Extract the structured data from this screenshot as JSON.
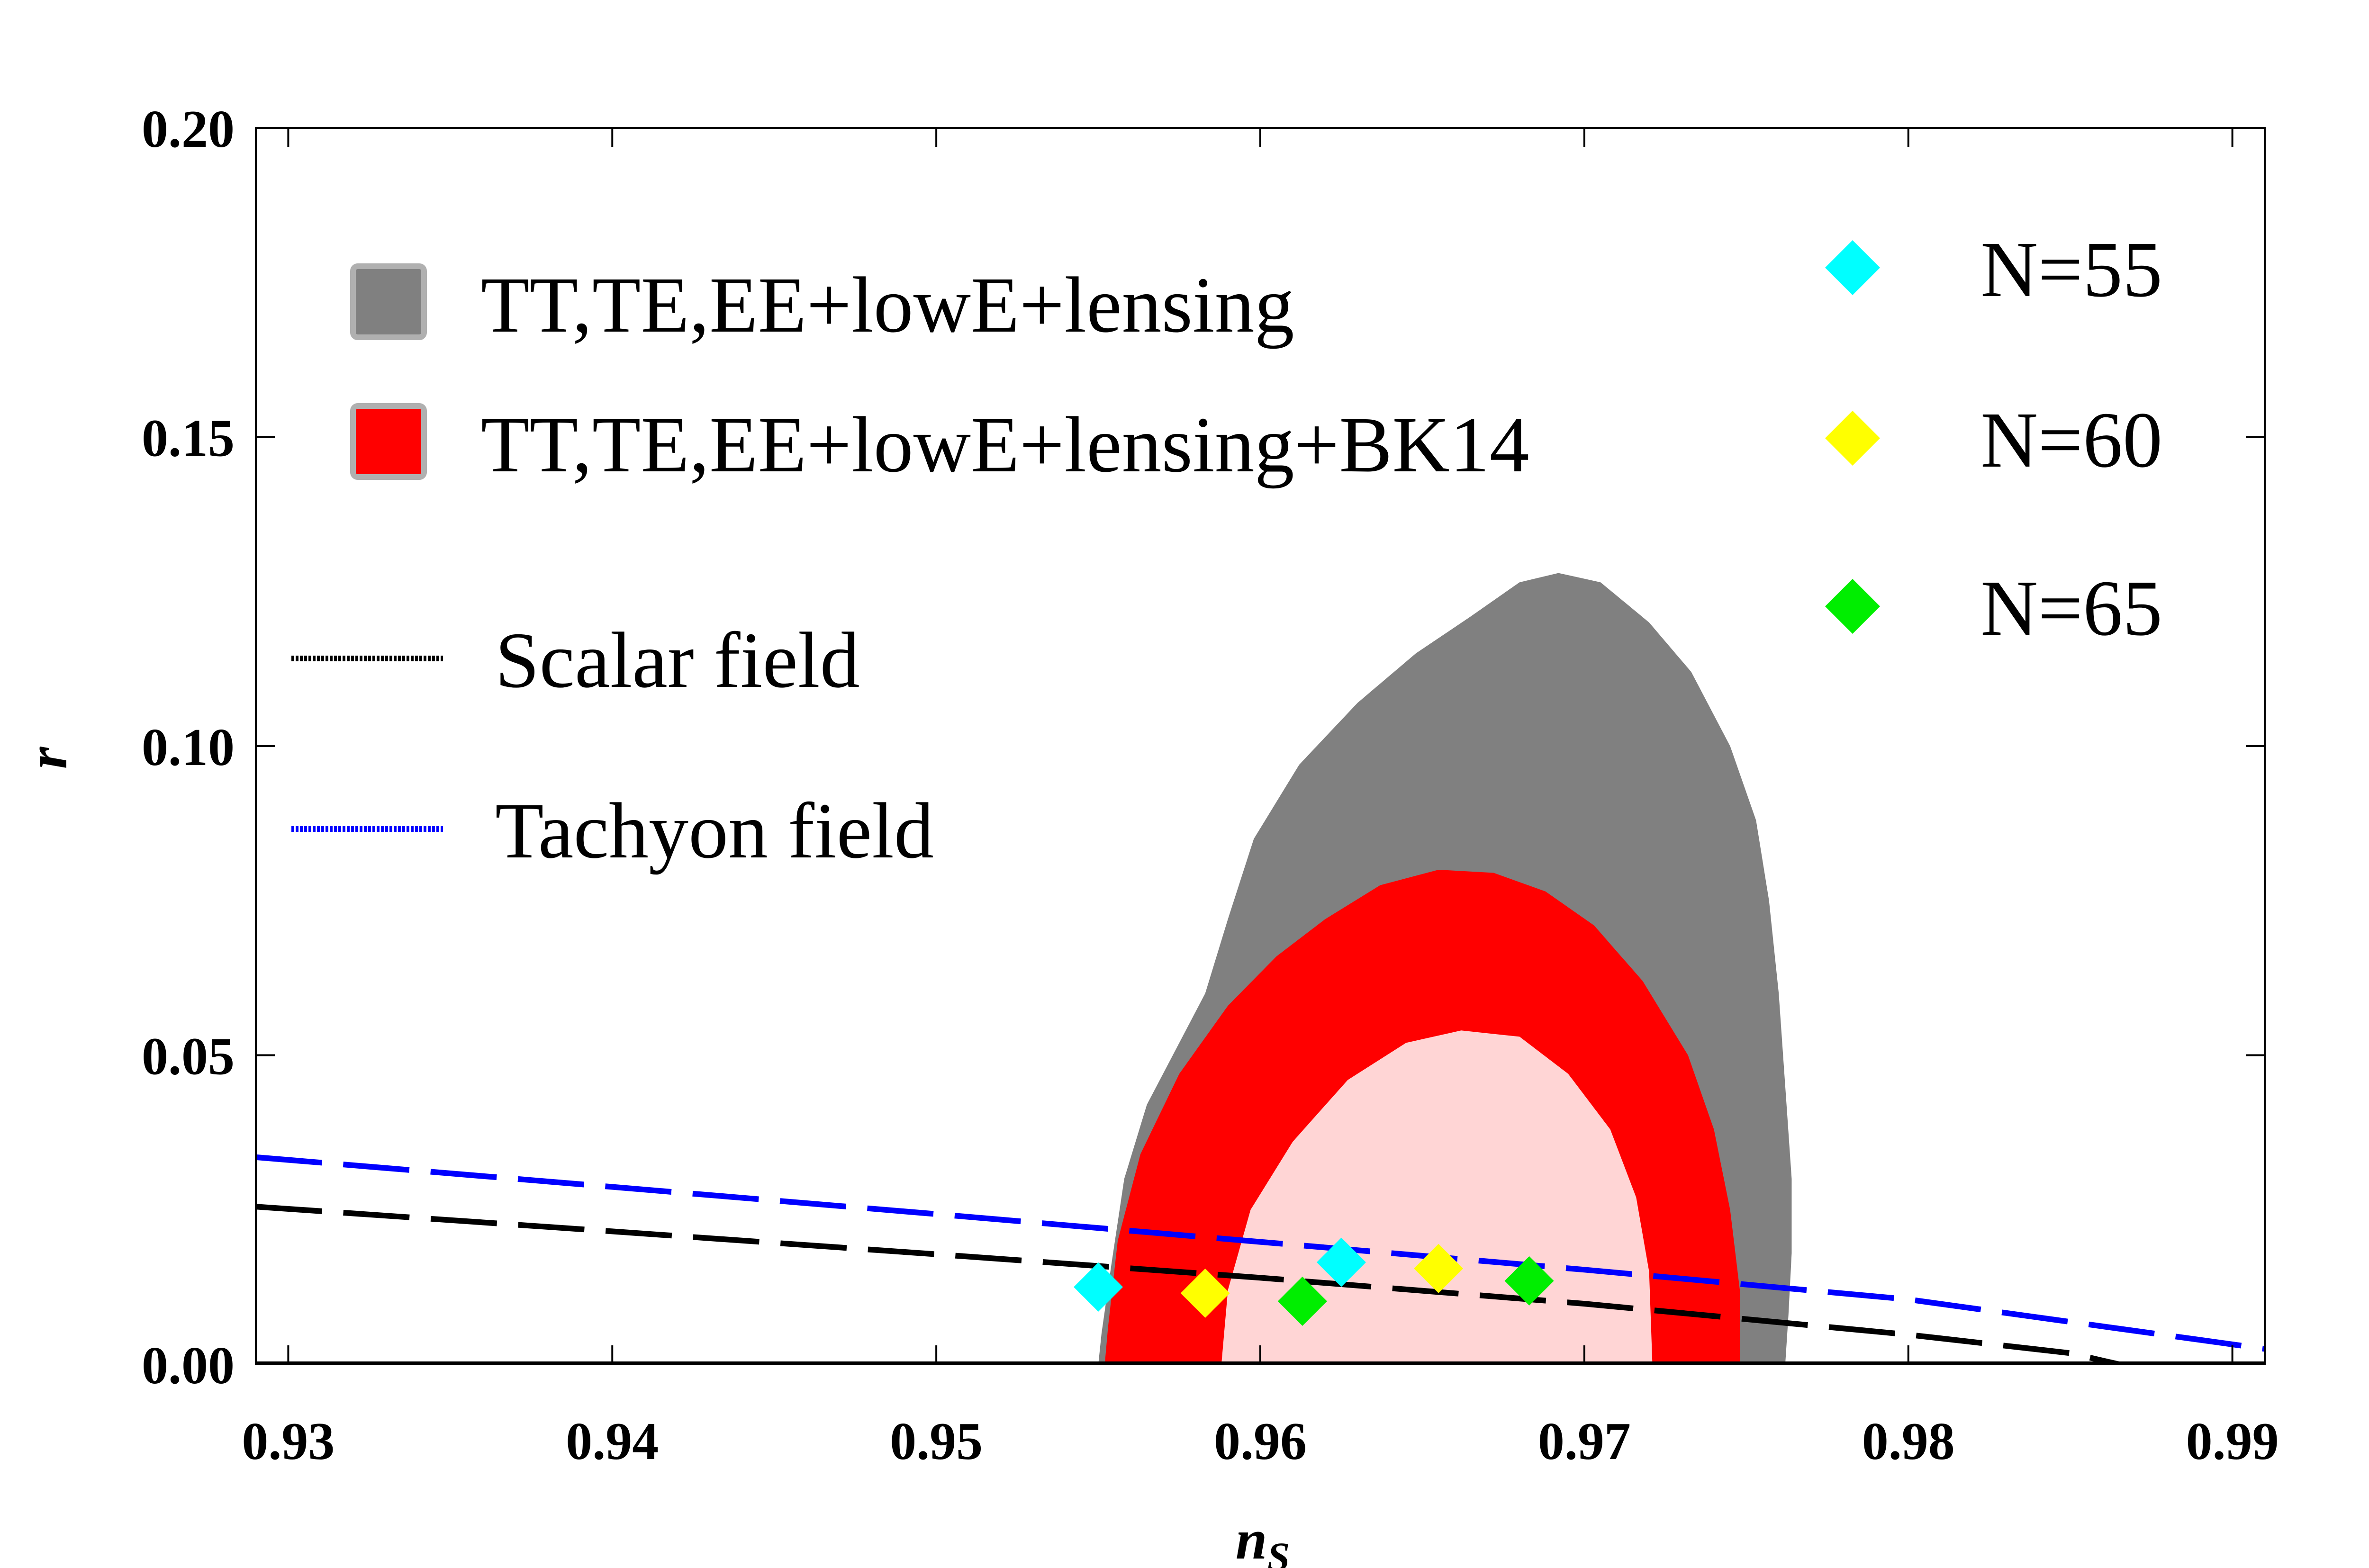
{
  "chart_data": {
    "type": "scatter",
    "title": "",
    "xlabel": "n",
    "xlabel_sub": "S",
    "ylabel": "r",
    "xlim": [
      0.929,
      0.991
    ],
    "ylim": [
      0.0,
      0.2
    ],
    "x_ticks": [
      "0.93",
      "0.94",
      "0.95",
      "0.96",
      "0.97",
      "0.98",
      "0.99"
    ],
    "y_ticks": [
      "0.00",
      "0.05",
      "0.10",
      "0.15",
      "0.20"
    ],
    "regions": [
      {
        "name": "TT,TE,EE+lowE+lensing",
        "level": "2sigma",
        "color": "#808080",
        "points": [
          [
            0.955,
            0.0
          ],
          [
            0.9551,
            0.005
          ],
          [
            0.9554,
            0.016
          ],
          [
            0.9558,
            0.03
          ],
          [
            0.9565,
            0.042
          ],
          [
            0.9575,
            0.052
          ],
          [
            0.9583,
            0.06
          ],
          [
            0.959,
            0.072
          ],
          [
            0.9598,
            0.085
          ],
          [
            0.9612,
            0.097
          ],
          [
            0.963,
            0.107
          ],
          [
            0.9648,
            0.115
          ],
          [
            0.9665,
            0.121
          ],
          [
            0.968,
            0.1265
          ],
          [
            0.9692,
            0.128
          ],
          [
            0.9705,
            0.1265
          ],
          [
            0.972,
            0.12
          ],
          [
            0.9733,
            0.112
          ],
          [
            0.9745,
            0.1
          ],
          [
            0.9753,
            0.088
          ],
          [
            0.9757,
            0.075
          ],
          [
            0.976,
            0.06
          ],
          [
            0.9762,
            0.045
          ],
          [
            0.9764,
            0.03
          ],
          [
            0.9764,
            0.018
          ],
          [
            0.9763,
            0.008
          ],
          [
            0.9762,
            0.0
          ]
        ]
      },
      {
        "name": "TT,TE,EE+lowE+lensing",
        "level": "1sigma",
        "color": "#d9d9d9",
        "points": [
          [
            0.9582,
            0.0
          ],
          [
            0.9584,
            0.015
          ],
          [
            0.959,
            0.029
          ],
          [
            0.96,
            0.041
          ],
          [
            0.9615,
            0.051
          ],
          [
            0.9632,
            0.059
          ],
          [
            0.965,
            0.065
          ],
          [
            0.9665,
            0.069
          ],
          [
            0.9678,
            0.0695
          ],
          [
            0.9692,
            0.066
          ],
          [
            0.9707,
            0.057
          ],
          [
            0.9717,
            0.047
          ],
          [
            0.9725,
            0.035
          ],
          [
            0.973,
            0.022
          ],
          [
            0.9732,
            0.01
          ],
          [
            0.9732,
            0.0
          ]
        ]
      },
      {
        "name": "TT,TE,EE+lowE+lensing+BK14",
        "level": "2sigma",
        "color": "#ff0000",
        "points": [
          [
            0.9552,
            0.0
          ],
          [
            0.9553,
            0.006
          ],
          [
            0.9556,
            0.02
          ],
          [
            0.9563,
            0.034
          ],
          [
            0.9575,
            0.047
          ],
          [
            0.959,
            0.058
          ],
          [
            0.9605,
            0.066
          ],
          [
            0.962,
            0.072
          ],
          [
            0.9637,
            0.0775
          ],
          [
            0.9655,
            0.08
          ],
          [
            0.9672,
            0.0795
          ],
          [
            0.9688,
            0.0765
          ],
          [
            0.9703,
            0.071
          ],
          [
            0.9718,
            0.062
          ],
          [
            0.9732,
            0.05
          ],
          [
            0.974,
            0.038
          ],
          [
            0.9745,
            0.025
          ],
          [
            0.9748,
            0.012
          ],
          [
            0.9748,
            0.0
          ]
        ]
      },
      {
        "name": "TT,TE,EE+lowE+lensing+BK14",
        "level": "1sigma",
        "color": "#ffd5d5",
        "points": [
          [
            0.9588,
            0.0
          ],
          [
            0.959,
            0.012
          ],
          [
            0.9597,
            0.025
          ],
          [
            0.961,
            0.036
          ],
          [
            0.9627,
            0.046
          ],
          [
            0.9645,
            0.052
          ],
          [
            0.9662,
            0.054
          ],
          [
            0.968,
            0.053
          ],
          [
            0.9695,
            0.047
          ],
          [
            0.9708,
            0.038
          ],
          [
            0.9716,
            0.027
          ],
          [
            0.972,
            0.015
          ],
          [
            0.9721,
            0.0
          ]
        ]
      }
    ],
    "series": [
      {
        "name": "Scalar field",
        "style": "long-dash",
        "color": "#000000",
        "x": [
          0.929,
          0.94,
          0.95,
          0.96,
          0.97,
          0.98,
          0.985,
          0.9865
        ],
        "y": [
          0.0255,
          0.0215,
          0.0178,
          0.014,
          0.0098,
          0.0048,
          0.0018,
          0.0
        ]
      },
      {
        "name": "Tachyon field",
        "style": "long-dash",
        "color": "#0000ff",
        "x": [
          0.929,
          0.94,
          0.95,
          0.96,
          0.97,
          0.98,
          0.991
        ],
        "y": [
          0.0335,
          0.0287,
          0.0243,
          0.0198,
          0.0153,
          0.0105,
          0.0025
        ]
      },
      {
        "name": "Scalar field (r=0 branch)",
        "style": "solid",
        "color": "#000000",
        "x": [
          0.929,
          0.991
        ],
        "y": [
          0.0,
          0.0
        ]
      }
    ],
    "points": [
      {
        "group": "N=55",
        "color": "#00ffff",
        "x": 0.955,
        "y": 0.0125
      },
      {
        "group": "N=55",
        "color": "#00ffff",
        "x": 0.9625,
        "y": 0.0165
      },
      {
        "group": "N=60",
        "color": "#ffff00",
        "x": 0.9583,
        "y": 0.0115
      },
      {
        "group": "N=60",
        "color": "#ffff00",
        "x": 0.9655,
        "y": 0.0155
      },
      {
        "group": "N=65",
        "color": "#00ee00",
        "x": 0.9613,
        "y": 0.0102
      },
      {
        "group": "N=65",
        "color": "#00ee00",
        "x": 0.9683,
        "y": 0.0135
      }
    ],
    "legend": {
      "placement": "top-left",
      "regions": [
        {
          "label": "TT,TE,EE+lowE+lensing",
          "color": "#808080"
        },
        {
          "label": "TT,TE,EE+lowE+lensing+BK14",
          "color": "#ff0000"
        }
      ],
      "lines": [
        {
          "label": "Scalar field",
          "color": "#000000"
        },
        {
          "label": "Tachyon field",
          "color": "#0000ff"
        }
      ],
      "markers": [
        {
          "label": "N=55",
          "color": "#00ffff"
        },
        {
          "label": "N=60",
          "color": "#ffff00"
        },
        {
          "label": "N=65",
          "color": "#00ee00"
        }
      ]
    }
  }
}
